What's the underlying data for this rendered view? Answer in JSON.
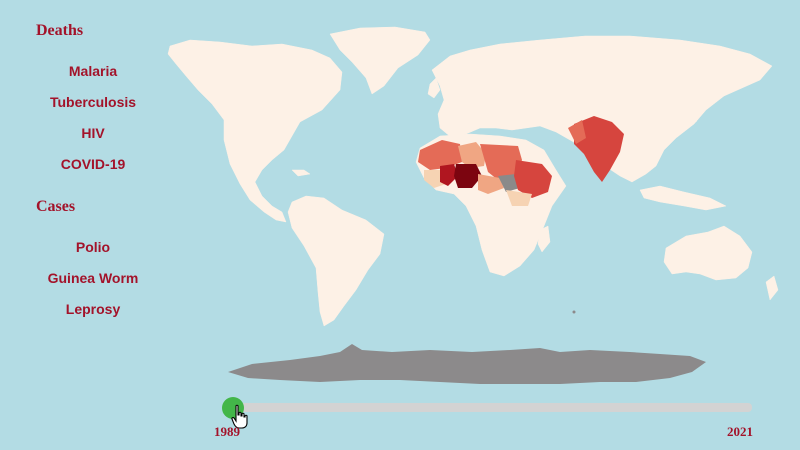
{
  "sidebar": {
    "deaths_heading": "Deaths",
    "deaths_items": [
      "Malaria",
      "Tuberculosis",
      "HIV",
      "COVID-19"
    ],
    "cases_heading": "Cases",
    "cases_items": [
      "Polio",
      "Guinea Worm",
      "Leprosy"
    ]
  },
  "timeline": {
    "start_year": "1989",
    "end_year": "2021",
    "current_position": 0
  },
  "colors": {
    "background_ocean": "#b3dce4",
    "land": "#fdf1e6",
    "antarctica": "#8c8a8b",
    "heading_text": "#a3132a",
    "slider_handle": "#43b649",
    "slider_track": "#d3d3d3",
    "choropleth_scale": [
      "#f6d3b3",
      "#f0a683",
      "#e46b57",
      "#d6453e",
      "#b01620",
      "#7c0510"
    ],
    "no_data": "#8a8a8a"
  },
  "icons": {
    "cursor": "hand-pointer-icon"
  }
}
